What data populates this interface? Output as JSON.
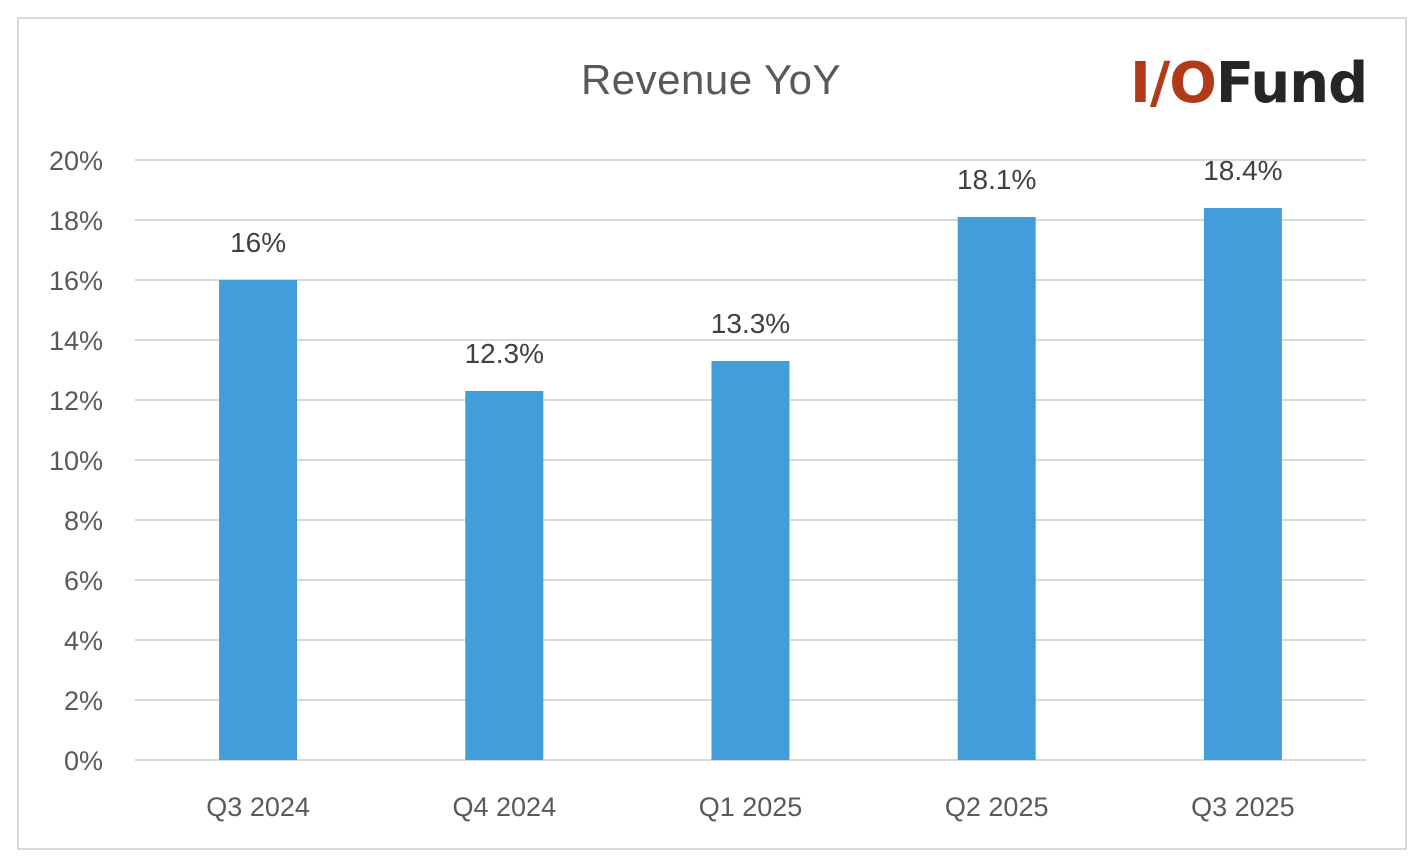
{
  "logo": {
    "io": "I/O",
    "fund": "Fund"
  },
  "chart_data": {
    "type": "bar",
    "title": "Revenue YoY",
    "xlabel": "",
    "ylabel": "",
    "categories": [
      "Q3 2024",
      "Q4 2024",
      "Q1 2025",
      "Q2 2025",
      "Q3 2025"
    ],
    "values": [
      16,
      12.3,
      13.3,
      18.1,
      18.4
    ],
    "data_labels": [
      "16%",
      "12.3%",
      "13.3%",
      "18.1%",
      "18.4%"
    ],
    "ylim": [
      0,
      20
    ],
    "yticks": [
      0,
      2,
      4,
      6,
      8,
      10,
      12,
      14,
      16,
      18,
      20
    ],
    "ytick_labels": [
      "0%",
      "2%",
      "4%",
      "6%",
      "8%",
      "10%",
      "12%",
      "14%",
      "16%",
      "18%",
      "20%"
    ],
    "grid": true,
    "legend": "none",
    "colors": {
      "bar": "#429edb",
      "grid": "#d9d9d9"
    }
  }
}
